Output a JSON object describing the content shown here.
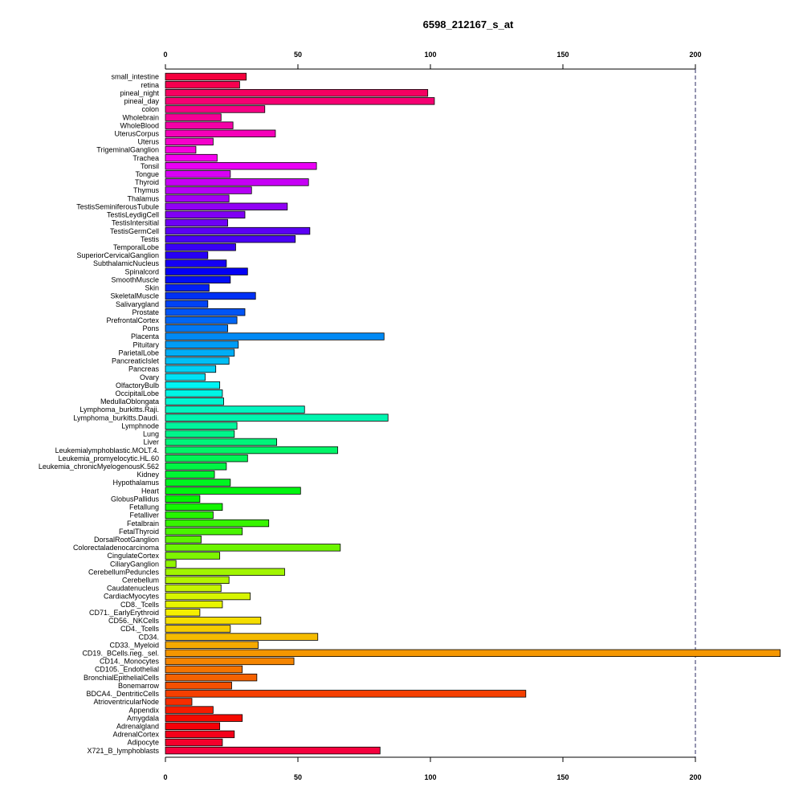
{
  "chart_data": {
    "type": "bar",
    "orientation": "horizontal",
    "title": "6598_212167_s_at",
    "xlabel": "",
    "ylabel": "",
    "xlim": [
      0,
      232
    ],
    "x_ticks": [
      0,
      50,
      100,
      150,
      200
    ],
    "reference_line": 200,
    "reference_line_style": "dashed",
    "grid": false,
    "legend": "none",
    "color_scheme": "rainbow",
    "categories": [
      "small_intestine",
      "retina",
      "pineal_night",
      "pineal_day",
      "colon",
      "Wholebrain",
      "WholeBlood",
      "UterusCorpus",
      "Uterus",
      "TrigeminalGanglion",
      "Trachea",
      "Tonsil",
      "Tongue",
      "Thyroid",
      "Thymus",
      "Thalamus",
      "TestisSeminiferousTubule",
      "TestisLeydigCell",
      "TestisIntersitial",
      "TestisGermCell",
      "Testis",
      "TemporalLobe",
      "SuperiorCervicalGanglion",
      "SubthalamicNucleus",
      "Spinalcord",
      "SmoothMuscle",
      "Skin",
      "SkeletalMuscle",
      "Salivarygland",
      "Prostate",
      "PrefrontalCortex",
      "Pons",
      "Placenta",
      "Pituitary",
      "ParietalLobe",
      "PancreaticIslet",
      "Pancreas",
      "Ovary",
      "OlfactoryBulb",
      "OccipitalLobe",
      "MedullaOblongata",
      "Lymphoma_burkitts.Raji.",
      "Lymphoma_burkitts.Daudi.",
      "Lymphnode",
      "Lung",
      "Liver",
      "Leukemialymphoblastic.MOLT.4.",
      "Leukemia_promyelocytic.HL.60",
      "Leukemia_chronicMyelogenousK.562",
      "Kidney",
      "Hypothalamus",
      "Heart",
      "GlobusPallidus",
      "Fetallung",
      "Fetalliver",
      "Fetalbrain",
      "FetalThyroid",
      "DorsalRootGanglion",
      "Colorectaladenocarcinoma",
      "CingulateCortex",
      "CiliaryGanglion",
      "CerebellumPeduncles",
      "Cerebellum",
      "Caudatenucleus",
      "CardiacMyocytes",
      "CD8._Tcells",
      "CD71._EarlyErythroid",
      "CD56._NKCells",
      "CD4._Tcells",
      "CD34.",
      "CD33._Myeloid",
      "CD19._BCells.neg._sel.",
      "CD14._Monocytes",
      "CD105._Endothelial",
      "BronchialEpithelialCells",
      "Bonemarrow",
      "BDCA4._DentriticCells",
      "AtrioventricularNode",
      "Appendix",
      "Amygdala",
      "Adrenalgland",
      "AdrenalCortex",
      "Adipocyte",
      "X721_B_lymphoblasts"
    ],
    "values": [
      30.5,
      28,
      99,
      101.5,
      37.5,
      21,
      25.5,
      41.5,
      18,
      11.5,
      19.5,
      57,
      24.5,
      54,
      32.5,
      24,
      46,
      30,
      23.5,
      54.5,
      49,
      26.5,
      16,
      23,
      31,
      24.5,
      16.5,
      34,
      16,
      30,
      27,
      23.5,
      82.5,
      27.5,
      26,
      24,
      19,
      15,
      20.5,
      21.5,
      22,
      52.5,
      84,
      27,
      26,
      42,
      65,
      31,
      23,
      18.5,
      24.5,
      51,
      13,
      21.5,
      18,
      39,
      29,
      13.5,
      66,
      20.5,
      4,
      45,
      24,
      21,
      32,
      21.5,
      13,
      36,
      24.5,
      57.5,
      35,
      232,
      48.5,
      29,
      34.5,
      25,
      136,
      10,
      18,
      29,
      20.5,
      26,
      21.5,
      81
    ]
  }
}
